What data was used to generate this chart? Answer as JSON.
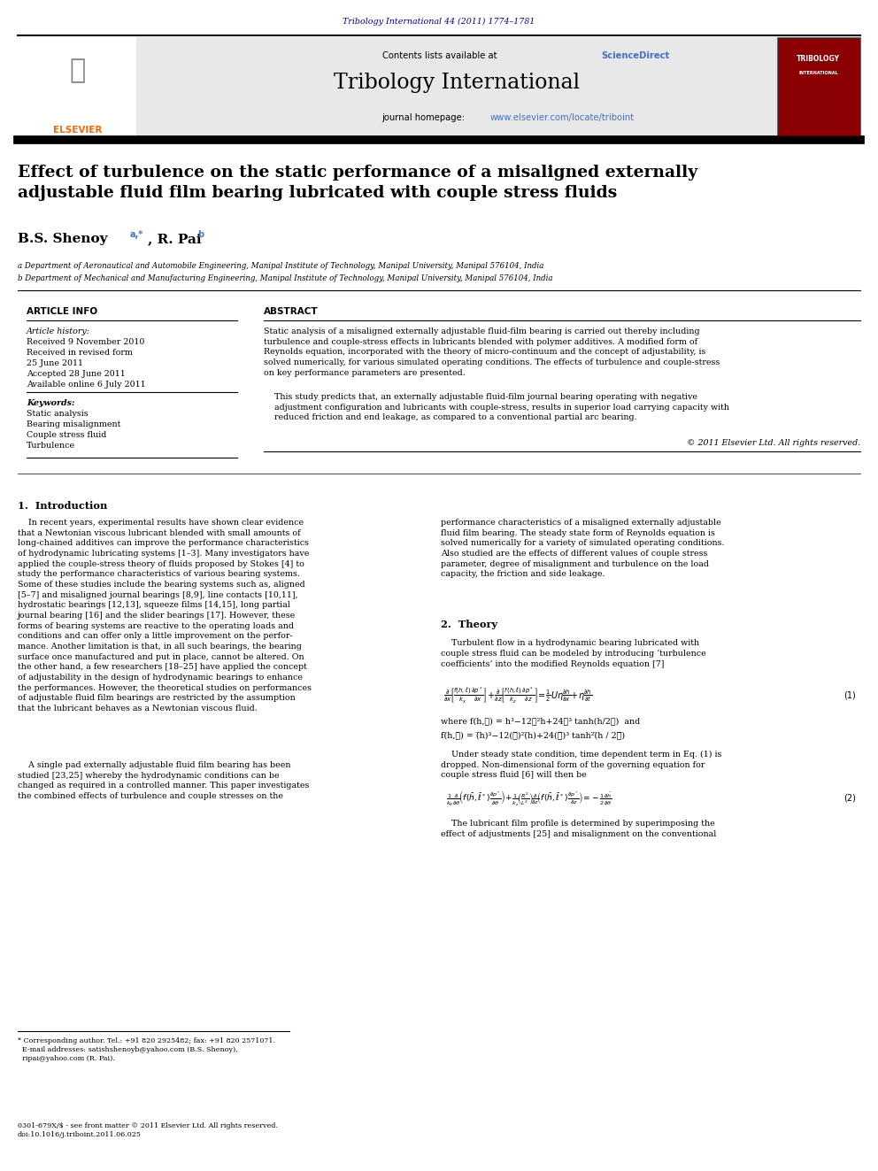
{
  "page_width": 9.92,
  "page_height": 13.23,
  "background_color": "#ffffff",
  "journal_ref": "Tribology International 44 (2011) 1774–1781",
  "journal_ref_color": "#00008B",
  "header_bg": "#e8e8e8",
  "sciencedirect_color": "#4472C4",
  "journal_title": "Tribology International",
  "homepage_url_color": "#4472C4",
  "paper_title": "Effect of turbulence on the static performance of a misaligned externally\nadjustable fluid film bearing lubricated with couple stress fluids",
  "affil_a": "a Department of Aeronautical and Automobile Engineering, Manipal Institute of Technology, Manipal University, Manipal 576104, India",
  "affil_b": "b Department of Mechanical and Manufacturing Engineering, Manipal Institute of Technology, Manipal University, Manipal 576104, India",
  "article_info_title": "ARTICLE INFO",
  "abstract_title": "ABSTRACT",
  "article_history_label": "Article history:",
  "received1": "Received 9 November 2010",
  "received2": "Received in revised form",
  "received2b": "25 June 2011",
  "accepted": "Accepted 28 June 2011",
  "available": "Available online 6 July 2011",
  "keywords_label": "Keywords:",
  "keyword1": "Static analysis",
  "keyword2": "Bearing misalignment",
  "keyword3": "Couple stress fluid",
  "keyword4": "Turbulence",
  "abstract_text1": "Static analysis of a misaligned externally adjustable fluid-film bearing is carried out thereby including\nturbulence and couple-stress effects in lubricants blended with polymer additives. A modified form of\nReynolds equation, incorporated with the theory of micro-continuum and the concept of adjustability, is\nsolved numerically, for various simulated operating conditions. The effects of turbulence and couple-stress\non key performance parameters are presented.",
  "abstract_text2": "This study predicts that, an externally adjustable fluid-film journal bearing operating with negative\nadjustment configuration and lubricants with couple-stress, results in superior load carrying capacity with\nreduced friction and end leakage, as compared to a conventional partial arc bearing.",
  "copyright": "© 2011 Elsevier Ltd. All rights reserved.",
  "intro_heading": "1.  Introduction",
  "intro_text1": "    In recent years, experimental results have shown clear evidence\nthat a Newtonian viscous lubricant blended with small amounts of\nlong-chained additives can improve the performance characteristics\nof hydrodynamic lubricating systems [1–3]. Many investigators have\napplied the couple-stress theory of fluids proposed by Stokes [4] to\nstudy the performance characteristics of various bearing systems.\nSome of these studies include the bearing systems such as, aligned\n[5–7] and misaligned journal bearings [8,9], line contacts [10,11],\nhydrostatic bearings [12,13], squeeze films [14,15], long partial\njournal bearing [16] and the slider bearings [17]. However, these\nforms of bearing systems are reactive to the operating loads and\nconditions and can offer only a little improvement on the perfor-\nmance. Another limitation is that, in all such bearings, the bearing\nsurface once manufactured and put in place, cannot be altered. On\nthe other hand, a few researchers [18–25] have applied the concept\nof adjustability in the design of hydrodynamic bearings to enhance\nthe performances. However, the theoretical studies on performances\nof adjustable fluid film bearings are restricted by the assumption\nthat the lubricant behaves as a Newtonian viscous fluid.",
  "intro_text2": "    A single pad externally adjustable fluid film bearing has been\nstudied [23,25] whereby the hydrodynamic conditions can be\nchanged as required in a controlled manner. This paper investigates\nthe combined effects of turbulence and couple stresses on the",
  "right_col_intro": "performance characteristics of a misaligned externally adjustable\nfluid film bearing. The steady state form of Reynolds equation is\nsolved numerically for a variety of simulated operating conditions.\nAlso studied are the effects of different values of couple stress\nparameter, degree of misalignment and turbulence on the load\ncapacity, the friction and side leakage.",
  "theory_heading": "2.  Theory",
  "theory_text": "    Turbulent flow in a hydrodynamic bearing lubricated with\ncouple stress fluid can be modeled by introducing ‘turbulence\ncoefficients’ into the modified Reynolds equation [7]",
  "eq1_label": "(1)",
  "eq2_label": "(2)",
  "eq_text1": "where f(h,ℓ) = h³−12ℓ²h+24ℓ³ tanh(h/2ℓ)  and",
  "eq_text2": "f(̅h,ℓ̅) = (̅h)³−12(ℓ̅)²(̅h)+24(ℓ̅)³ tanh²(̅h / 2ℓ̅)",
  "under_steady": "    Under steady state condition, time dependent term in Eq. (1) is\ndropped. Non-dimensional form of the governing equation for\ncouple stress fluid [6] will then be",
  "film_profile": "    The lubricant film profile is determined by superimposing the\neffect of adjustments [25] and misalignment on the conventional",
  "footnote": "* Corresponding author. Tel.: +91 820 2925482; fax: +91 820 2571071.\n  E-mail addresses: satishshenoyb@yahoo.com (B.S. Shenoy),\n  ripai@yahoo.com (R. Pai).",
  "footer": "0301-679X/$ - see front matter © 2011 Elsevier Ltd. All rights reserved.\ndoi:10.1016/j.triboint.2011.06.025",
  "link_color": "#4472C4",
  "text_color": "#000000"
}
